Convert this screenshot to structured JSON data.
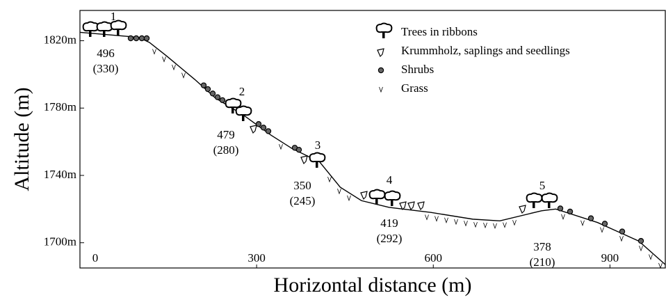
{
  "chart_data": {
    "type": "line",
    "x": [
      0,
      100,
      118,
      147,
      195,
      230,
      277,
      324,
      360,
      407,
      442,
      478,
      525,
      596,
      667,
      713,
      784,
      808,
      879,
      949,
      994
    ],
    "values": [
      1825,
      1822,
      1819,
      1811,
      1797,
      1786,
      1776,
      1764,
      1756,
      1748,
      1733,
      1725,
      1721,
      1718,
      1714,
      1713,
      1719,
      1720,
      1712,
      1701,
      1687
    ],
    "color": "#000000",
    "xlim": [
      0,
      994
    ],
    "ylim": [
      1685,
      1838
    ],
    "xticks": [
      0,
      300,
      600,
      900
    ],
    "yticks": [
      {
        "value": 1700,
        "label": "1700m"
      },
      {
        "value": 1740,
        "label": "1740m"
      },
      {
        "value": 1780,
        "label": "1780m"
      },
      {
        "value": 1820,
        "label": "1820m"
      }
    ],
    "xlabel": "Horizontal distance (m)",
    "ylabel": "Altitude (m)",
    "sites": [
      {
        "number": "1",
        "count": "496",
        "paren": "(330)"
      },
      {
        "number": "2",
        "count": "479",
        "paren": "(280)"
      },
      {
        "number": "3",
        "count": "350",
        "paren": "(245)"
      },
      {
        "number": "4",
        "count": "419",
        "paren": "(292)"
      },
      {
        "number": "5",
        "count": "378",
        "paren": "(210)"
      }
    ],
    "legend": [
      "Trees in ribbons",
      "Krummholz, saplings and seedlings",
      "Shrubs",
      "Grass"
    ]
  }
}
